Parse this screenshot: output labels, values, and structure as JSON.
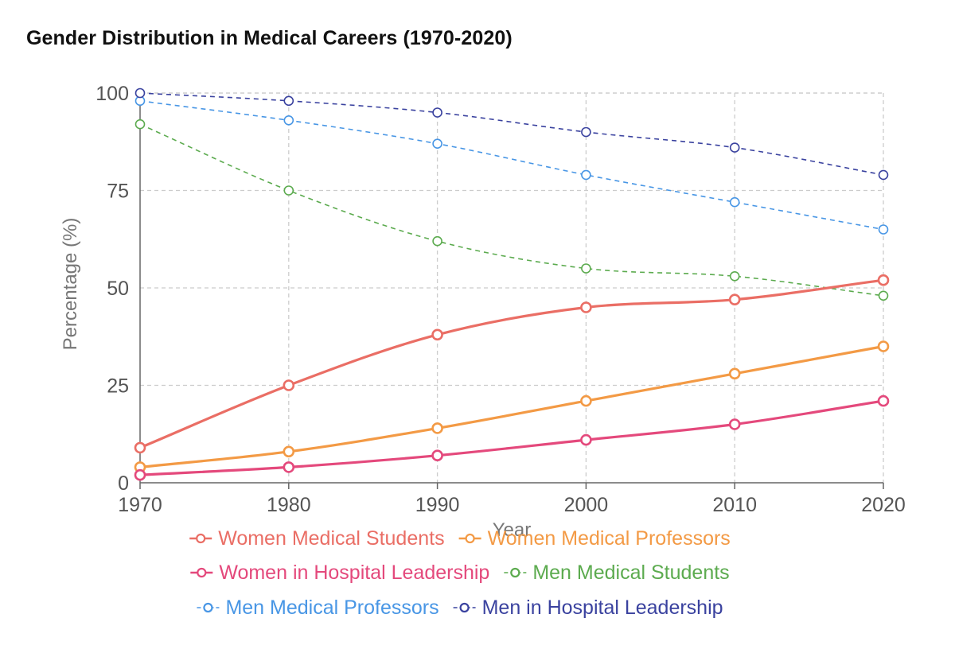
{
  "chart_data": {
    "type": "line",
    "title": "Gender Distribution in Medical Careers (1970-2020)",
    "xlabel": "Year",
    "ylabel": "Percentage (%)",
    "x": [
      "1970",
      "1980",
      "1990",
      "2000",
      "2010",
      "2020"
    ],
    "ylim": [
      0,
      100
    ],
    "yticks": [
      "0",
      "25",
      "50",
      "75",
      "100"
    ],
    "grid": true,
    "legend_position": "bottom",
    "series": [
      {
        "name": "Women Medical Students",
        "values": [
          9,
          25,
          38,
          45,
          47,
          52
        ],
        "color": "#ea6e65",
        "dashed": false
      },
      {
        "name": "Women Medical Professors",
        "values": [
          4,
          8,
          14,
          21,
          28,
          35
        ],
        "color": "#f39a45",
        "dashed": false
      },
      {
        "name": "Women in Hospital Leadership",
        "values": [
          2,
          4,
          7,
          11,
          15,
          21
        ],
        "color": "#e4497c",
        "dashed": false
      },
      {
        "name": "Men Medical Students",
        "values": [
          92,
          75,
          62,
          55,
          53,
          48
        ],
        "color": "#5cab4f",
        "dashed": true
      },
      {
        "name": "Men Medical Professors",
        "values": [
          98,
          93,
          87,
          79,
          72,
          65
        ],
        "color": "#4896e5",
        "dashed": true
      },
      {
        "name": "Men in Hospital Leadership",
        "values": [
          100,
          98,
          95,
          90,
          86,
          79
        ],
        "color": "#3a429f",
        "dashed": true
      }
    ]
  }
}
